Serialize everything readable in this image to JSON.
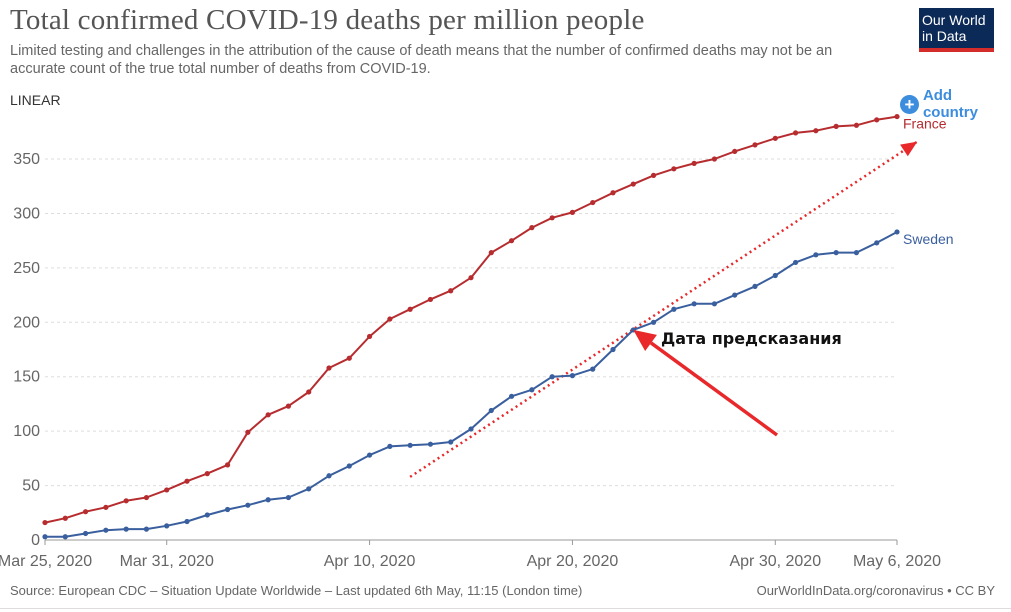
{
  "header": {
    "title": "Total confirmed COVID-19 deaths per million people",
    "subtitle": "Limited testing and challenges in the attribution of the cause of death means that the number of confirmed deaths may not be an accurate count of the true total number of deaths from COVID-19.",
    "logo_text": "Our World in Data"
  },
  "controls": {
    "scale_label": "LINEAR",
    "add_country_label": "Add country"
  },
  "annotation": {
    "label": "Дата предсказания",
    "color": "#e8282a"
  },
  "footer": {
    "source": "Source: European CDC – Situation Update Worldwide – Last updated 6th May, 11:15 (London time)",
    "url": "OurWorldInData.org/coronavirus • CC BY"
  },
  "colors": {
    "france": "#b62c2f",
    "sweden": "#3a5f9e",
    "grid": "#dddddd",
    "axis_text": "#666666"
  },
  "chart_data": {
    "type": "line",
    "title": "Total confirmed COVID-19 deaths per million people",
    "ylim": [
      0,
      390
    ],
    "yticks": [
      0,
      50,
      100,
      150,
      200,
      250,
      300,
      350
    ],
    "xticks": [
      "Mar 25, 2020",
      "Mar 31, 2020",
      "Apr 10, 2020",
      "Apr 20, 2020",
      "Apr 30, 2020",
      "May 6, 2020"
    ],
    "xtick_day_index": [
      0,
      6,
      16,
      26,
      36,
      42
    ],
    "x": [
      "2020-03-25",
      "2020-03-26",
      "2020-03-27",
      "2020-03-28",
      "2020-03-29",
      "2020-03-30",
      "2020-03-31",
      "2020-04-01",
      "2020-04-02",
      "2020-04-03",
      "2020-04-04",
      "2020-04-05",
      "2020-04-06",
      "2020-04-07",
      "2020-04-08",
      "2020-04-09",
      "2020-04-10",
      "2020-04-11",
      "2020-04-12",
      "2020-04-13",
      "2020-04-14",
      "2020-04-15",
      "2020-04-16",
      "2020-04-17",
      "2020-04-18",
      "2020-04-19",
      "2020-04-20",
      "2020-04-21",
      "2020-04-22",
      "2020-04-23",
      "2020-04-24",
      "2020-04-25",
      "2020-04-26",
      "2020-04-27",
      "2020-04-28",
      "2020-04-29",
      "2020-04-30",
      "2020-05-01",
      "2020-05-02",
      "2020-05-03",
      "2020-05-04",
      "2020-05-05",
      "2020-05-06"
    ],
    "grid": true,
    "series": [
      {
        "name": "France",
        "values": [
          16,
          20,
          26,
          30,
          36,
          39,
          46,
          54,
          61,
          69,
          99,
          115,
          123,
          136,
          158,
          167,
          187,
          203,
          212,
          221,
          229,
          241,
          264,
          275,
          287,
          296,
          301,
          310,
          319,
          327,
          335,
          341,
          346,
          350,
          357,
          363,
          369,
          374,
          376,
          380,
          381,
          386,
          389
        ]
      },
      {
        "name": "Sweden",
        "values": [
          3,
          3,
          6,
          9,
          10,
          10,
          13,
          17,
          23,
          28,
          32,
          37,
          39,
          47,
          59,
          68,
          78,
          86,
          87,
          88,
          90,
          102,
          119,
          132,
          138,
          150,
          151,
          157,
          175,
          193,
          200,
          212,
          217,
          217,
          225,
          233,
          243,
          255,
          262,
          264,
          264,
          273,
          283
        ]
      }
    ],
    "trend_line": {
      "from": {
        "date": "2020-04-12",
        "value": 58
      },
      "to": {
        "date": "2020-05-07",
        "value": 366
      }
    }
  }
}
